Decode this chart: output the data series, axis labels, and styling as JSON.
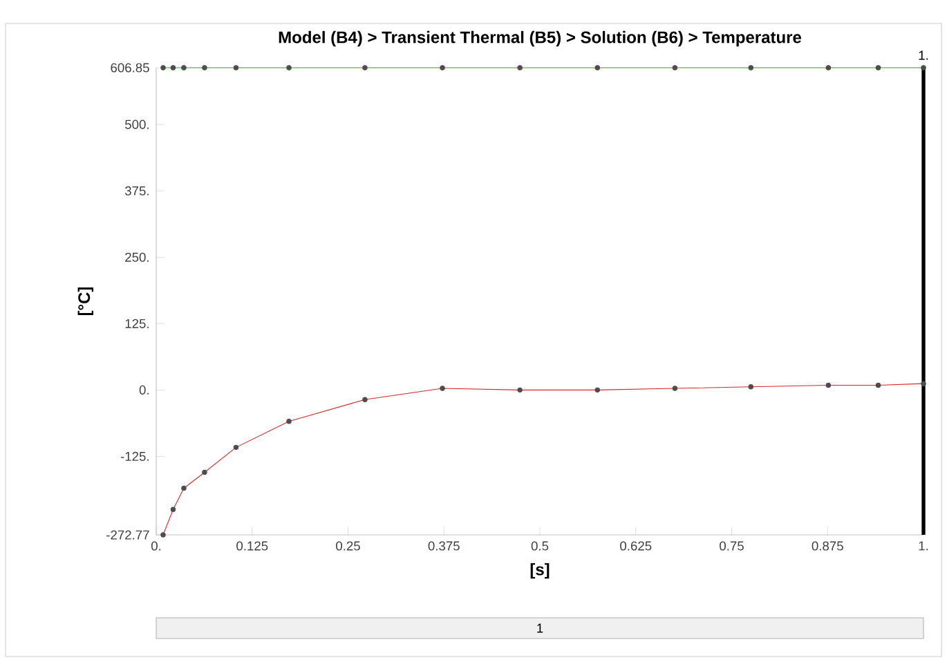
{
  "chart_data": {
    "type": "line",
    "title": "Model (B4) > Transient Thermal (B5) > Solution (B6) > Temperature",
    "xlabel": "[s]",
    "ylabel": "[°C]",
    "x": [
      0.009,
      0.022,
      0.036,
      0.063,
      0.104,
      0.173,
      0.272,
      0.373,
      0.474,
      0.575,
      0.676,
      0.775,
      0.876,
      0.941,
      1.0
    ],
    "series": [
      {
        "color": "#2ca02c",
        "values": [
          606.85,
          606.85,
          606.85,
          606.85,
          606.85,
          606.85,
          606.85,
          606.85,
          606.85,
          606.85,
          606.85,
          606.85,
          606.85,
          606.85,
          606.85
        ]
      },
      {
        "color": "#d62728",
        "values": [
          -272.77,
          -225,
          -185,
          -155,
          -108,
          -59,
          -18,
          3,
          0,
          0,
          3,
          6,
          9,
          9,
          12
        ]
      }
    ],
    "xlim": [
      0,
      1
    ],
    "xticks": [
      {
        "value": 0,
        "label": "0."
      },
      0.125,
      0.25,
      0.375,
      0.5,
      0.625,
      0.75,
      0.875,
      {
        "value": 1,
        "label": "1."
      }
    ],
    "ylim": [
      -272.77,
      606.85
    ],
    "yticks": [
      -272.77,
      {
        "value": -125,
        "label": "-125."
      },
      {
        "value": 0,
        "label": "0."
      },
      {
        "value": 125,
        "label": "125."
      },
      {
        "value": 250,
        "label": "250."
      },
      {
        "value": 375,
        "label": "375."
      },
      {
        "value": 500,
        "label": "500."
      },
      606.85
    ],
    "ref_lines": [
      {
        "axis": "x",
        "value": 1,
        "label": "1.",
        "color": "#000000"
      }
    ],
    "annotations": [
      "1"
    ],
    "marker": "circle",
    "line_style": "solid",
    "grid": false
  }
}
